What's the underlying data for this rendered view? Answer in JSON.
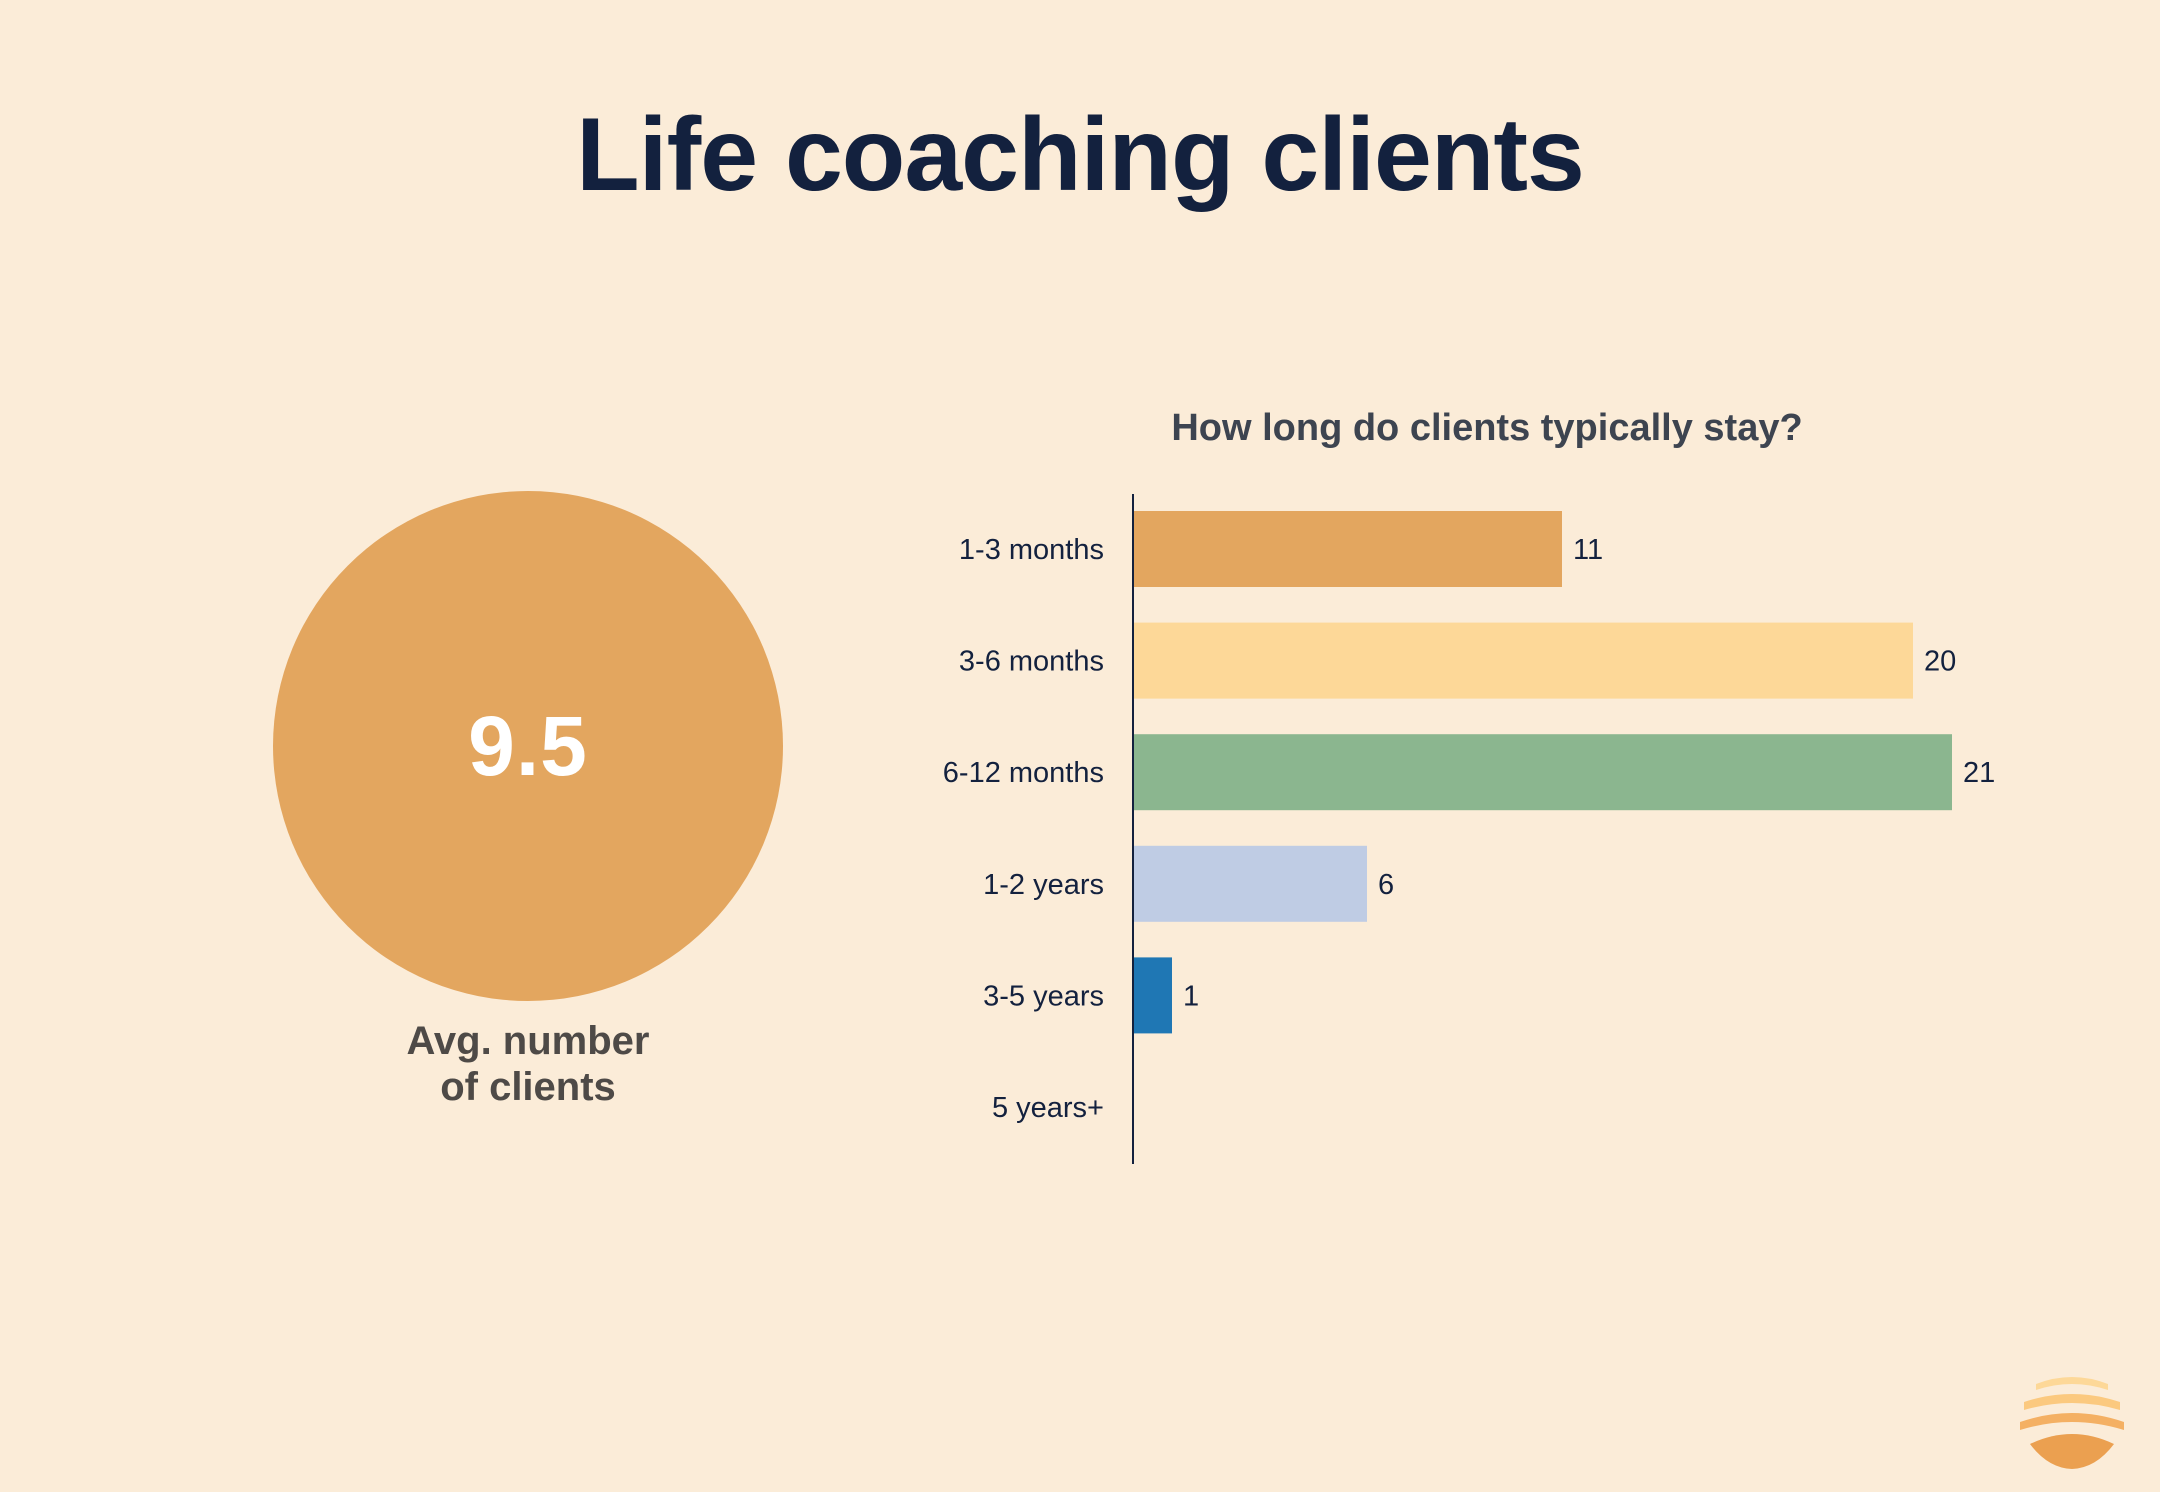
{
  "title": "Life coaching clients",
  "kpi": {
    "value": "9.5",
    "label_line1": "Avg. number",
    "label_line2": "of clients",
    "color": "#e3a65f"
  },
  "chart_data": {
    "type": "bar",
    "orientation": "horizontal",
    "title": "How long do clients typically stay?",
    "categories": [
      "1-3 months",
      "3-6 months",
      "6-12 months",
      "1-2 years",
      "3-5 years",
      "5 years+"
    ],
    "values": [
      11,
      20,
      21,
      6,
      1,
      0
    ],
    "value_labels": [
      "11",
      "20",
      "21",
      "6",
      "1",
      ""
    ],
    "colors": [
      "#e3a65f",
      "#fdd898",
      "#8bb68f",
      "#bfcce4",
      "#1f77b4",
      "#cccccc"
    ],
    "xlim": [
      0,
      21
    ],
    "grid": false,
    "legend": "none"
  }
}
